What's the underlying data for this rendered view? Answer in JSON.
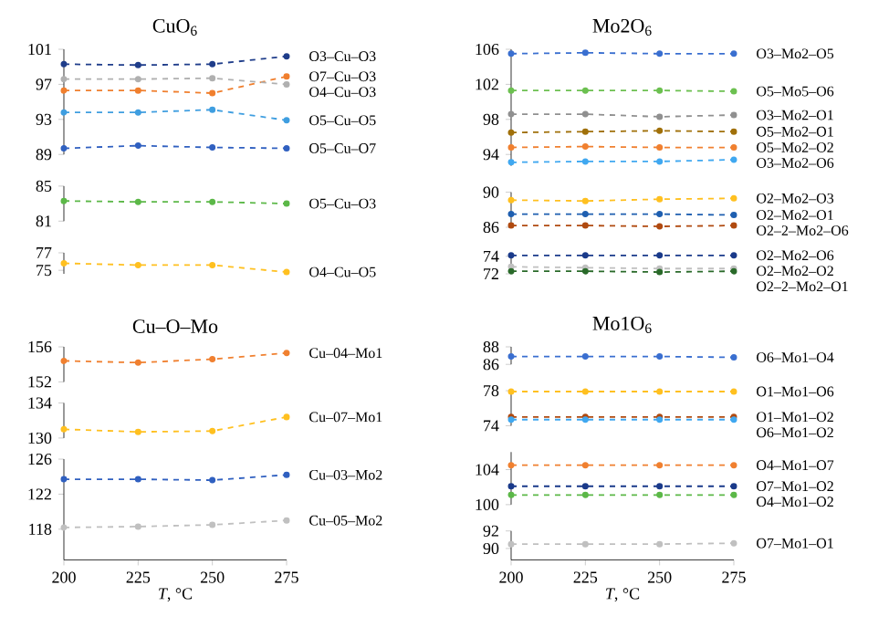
{
  "chart_data": [
    {
      "type": "line",
      "title": "CuO$_{6}$",
      "x": [
        200,
        225,
        250,
        275
      ],
      "xlim": [
        200,
        275
      ],
      "ylim": [
        89,
        101
      ],
      "yticks": [
        89,
        93,
        97,
        101
      ],
      "tick_labels": "y",
      "marker": "circle",
      "line_style": "dashed",
      "series": [
        {
          "name": "O3–Cu–O3",
          "color": "#1f3d8a",
          "values": [
            99.3,
            99.2,
            99.3,
            100.2
          ]
        },
        {
          "name": "O7–Cu–O3",
          "color": "#f07f2e",
          "values": [
            96.3,
            96.3,
            96.0,
            97.9
          ]
        },
        {
          "name": "O4–Cu–O3",
          "color": "#b0b0b0",
          "values": [
            97.6,
            97.6,
            97.7,
            97.0
          ]
        },
        {
          "name": "O5–Cu–O5",
          "color": "#3f9ee0",
          "values": [
            93.8,
            93.8,
            94.1,
            92.9
          ]
        },
        {
          "name": "O5–Cu–O7",
          "color": "#3060c0",
          "values": [
            89.7,
            90.0,
            89.8,
            89.7
          ]
        }
      ]
    },
    {
      "type": "line",
      "x": [
        200,
        225,
        250,
        275
      ],
      "xlim": [
        200,
        275
      ],
      "ylim": [
        81,
        85
      ],
      "yticks": [
        81,
        85
      ],
      "tick_labels": "y",
      "marker": "circle",
      "line_style": "dashed",
      "series": [
        {
          "name": "O5–Cu–O3",
          "color": "#5cb848",
          "values": [
            83.3,
            83.2,
            83.2,
            83.0
          ]
        }
      ]
    },
    {
      "type": "line",
      "x": [
        200,
        225,
        250,
        275
      ],
      "xlim": [
        200,
        275
      ],
      "ylim": [
        74.6,
        77
      ],
      "yticks": [
        75,
        77
      ],
      "tick_labels": "y",
      "marker": "circle",
      "line_style": "dashed",
      "series": [
        {
          "name": "O4–Cu–O5",
          "color": "#ffc020",
          "values": [
            75.8,
            75.6,
            75.6,
            74.8
          ]
        }
      ]
    },
    {
      "type": "line",
      "title": "Mo2O$_{6}$",
      "x": [
        200,
        225,
        250,
        275
      ],
      "xlim": [
        200,
        275
      ],
      "ylim": [
        92.7,
        106
      ],
      "yticks": [
        94,
        98,
        102,
        106
      ],
      "tick_labels": "y",
      "marker": "circle",
      "line_style": "dashed",
      "series": [
        {
          "name": "O3–Mo2–O5",
          "color": "#3a6fd0",
          "values": [
            105.5,
            105.6,
            105.5,
            105.5
          ]
        },
        {
          "name": "O5–Mo5–O6",
          "color": "#6cc050",
          "values": [
            101.3,
            101.3,
            101.3,
            101.2
          ]
        },
        {
          "name": "O3–Mo2–O1",
          "color": "#909090",
          "values": [
            98.6,
            98.6,
            98.3,
            98.5
          ]
        },
        {
          "name": "O5–Mo2–O1",
          "color": "#a0700a",
          "values": [
            96.5,
            96.6,
            96.7,
            96.6
          ]
        },
        {
          "name": "O5–Mo2–O2",
          "color": "#f08030",
          "values": [
            94.8,
            94.9,
            94.8,
            94.8
          ]
        },
        {
          "name": "O3–Mo2–O6",
          "color": "#40a8f0",
          "values": [
            93.1,
            93.2,
            93.2,
            93.4
          ]
        }
      ]
    },
    {
      "type": "line",
      "x": [
        200,
        225,
        250,
        275
      ],
      "xlim": [
        200,
        275
      ],
      "ylim": [
        86,
        90
      ],
      "yticks": [
        86,
        90
      ],
      "tick_labels": "y",
      "marker": "circle",
      "line_style": "dashed",
      "series": [
        {
          "name": "O2–Mo2–O3",
          "color": "#ffc020",
          "values": [
            89.1,
            89.0,
            89.2,
            89.3
          ]
        },
        {
          "name": "O2–Mo2–O1",
          "color": "#1f5fb0",
          "values": [
            87.5,
            87.5,
            87.5,
            87.4
          ]
        },
        {
          "name": "O2–2–Mo2–O6",
          "color": "#b04a10",
          "values": [
            86.2,
            86.2,
            86.1,
            86.2
          ]
        }
      ]
    },
    {
      "type": "line",
      "x": [
        200,
        225,
        250,
        275
      ],
      "xlim": [
        200,
        275
      ],
      "ylim": [
        72,
        74.3
      ],
      "yticks": [
        72,
        74
      ],
      "tick_labels": "y",
      "marker": "circle",
      "line_style": "dashed",
      "series": [
        {
          "name": "O2–Mo2–O6",
          "color": "#1a3a8a",
          "values": [
            74.1,
            74.1,
            74.1,
            74.1
          ]
        },
        {
          "name": "O2–Mo2–O2",
          "color": "#c0c0c0",
          "values": [
            72.8,
            72.7,
            72.6,
            72.6
          ]
        },
        {
          "name": "O2–2–Mo2–O1",
          "color": "#2a6a2a",
          "values": [
            72.3,
            72.3,
            72.2,
            72.3
          ]
        }
      ]
    },
    {
      "type": "line",
      "title": "Cu–O–Mo",
      "x": [
        200,
        225,
        250,
        275
      ],
      "xlim": [
        200,
        275
      ],
      "ylim": [
        152,
        156
      ],
      "yticks": [
        152,
        156
      ],
      "tick_labels": "y",
      "marker": "circle",
      "line_style": "dashed",
      "series": [
        {
          "name": "Cu–04–Mo1",
          "color": "#f08030",
          "values": [
            154.4,
            154.2,
            154.6,
            155.3
          ]
        }
      ]
    },
    {
      "type": "line",
      "x": [
        200,
        225,
        250,
        275
      ],
      "xlim": [
        200,
        275
      ],
      "ylim": [
        130,
        134
      ],
      "yticks": [
        130,
        134
      ],
      "tick_labels": "y",
      "marker": "circle",
      "line_style": "dashed",
      "series": [
        {
          "name": "Cu–07–Mo1",
          "color": "#ffc020",
          "values": [
            131.0,
            130.7,
            130.8,
            132.4
          ]
        }
      ]
    },
    {
      "type": "line",
      "xlabel": "*T*, °C",
      "x": [
        200,
        225,
        250,
        275
      ],
      "xlim": [
        200,
        275
      ],
      "xticks": [
        200,
        225,
        250,
        275
      ],
      "ylim": [
        114.5,
        126
      ],
      "yticks": [
        118,
        122,
        126
      ],
      "marker": "circle",
      "line_style": "dashed",
      "series": [
        {
          "name": "Cu–03–Mo2",
          "color": "#3060c0",
          "values": [
            123.7,
            123.7,
            123.6,
            124.2
          ]
        },
        {
          "name": "Cu–05–Mo2",
          "color": "#c0c0c0",
          "values": [
            118.2,
            118.3,
            118.5,
            119.0
          ]
        }
      ]
    },
    {
      "type": "line",
      "title": "Mo1O$_{6}$",
      "x": [
        200,
        225,
        250,
        275
      ],
      "xlim": [
        200,
        275
      ],
      "ylim": [
        86,
        88
      ],
      "yticks": [
        86,
        88
      ],
      "tick_labels": "y",
      "marker": "circle",
      "line_style": "dashed",
      "series": [
        {
          "name": "O6–Mo1–O4",
          "color": "#3a6fd0",
          "values": [
            86.9,
            86.9,
            86.9,
            86.8
          ]
        }
      ]
    },
    {
      "type": "line",
      "x": [
        200,
        225,
        250,
        275
      ],
      "xlim": [
        200,
        275
      ],
      "ylim": [
        74,
        78
      ],
      "yticks": [
        74,
        78
      ],
      "tick_labels": "y",
      "marker": "circle",
      "line_style": "dashed",
      "series": [
        {
          "name": "O1–Mo1–O6",
          "color": "#ffc020",
          "values": [
            77.9,
            77.9,
            77.9,
            77.9
          ]
        },
        {
          "name": "O1–Mo1–O2",
          "color": "#b04a10",
          "values": [
            75.0,
            75.0,
            75.0,
            75.0
          ]
        },
        {
          "name": "O6–Mo1–O2",
          "color": "#40a8f0",
          "values": [
            74.7,
            74.7,
            74.7,
            74.7
          ]
        }
      ]
    },
    {
      "type": "line",
      "x": [
        200,
        225,
        250,
        275
      ],
      "xlim": [
        200,
        275
      ],
      "ylim": [
        100,
        106
      ],
      "yticks": [
        100,
        104
      ],
      "tick_labels": "y",
      "marker": "circle",
      "line_style": "dashed",
      "series": [
        {
          "name": "O4–Mo1–O7",
          "color": "#f08030",
          "values": [
            104.5,
            104.5,
            104.5,
            104.5
          ]
        },
        {
          "name": "O7–Mo1–O2",
          "color": "#1a3a8a",
          "values": [
            102.1,
            102.1,
            102.1,
            102.1
          ]
        },
        {
          "name": "O4–Mo1–O2",
          "color": "#5cb848",
          "values": [
            101.1,
            101.1,
            101.1,
            101.1
          ]
        }
      ]
    },
    {
      "type": "line",
      "xlabel": "*T*, °C",
      "x": [
        200,
        225,
        250,
        275
      ],
      "xlim": [
        200,
        275
      ],
      "xticks": [
        200,
        225,
        250,
        275
      ],
      "ylim": [
        88.7,
        92
      ],
      "yticks": [
        90,
        92
      ],
      "marker": "circle",
      "line_style": "dashed",
      "series": [
        {
          "name": "O7–Mo1–O1",
          "color": "#c0c0c0",
          "values": [
            90.5,
            90.5,
            90.5,
            90.6
          ]
        }
      ]
    }
  ]
}
